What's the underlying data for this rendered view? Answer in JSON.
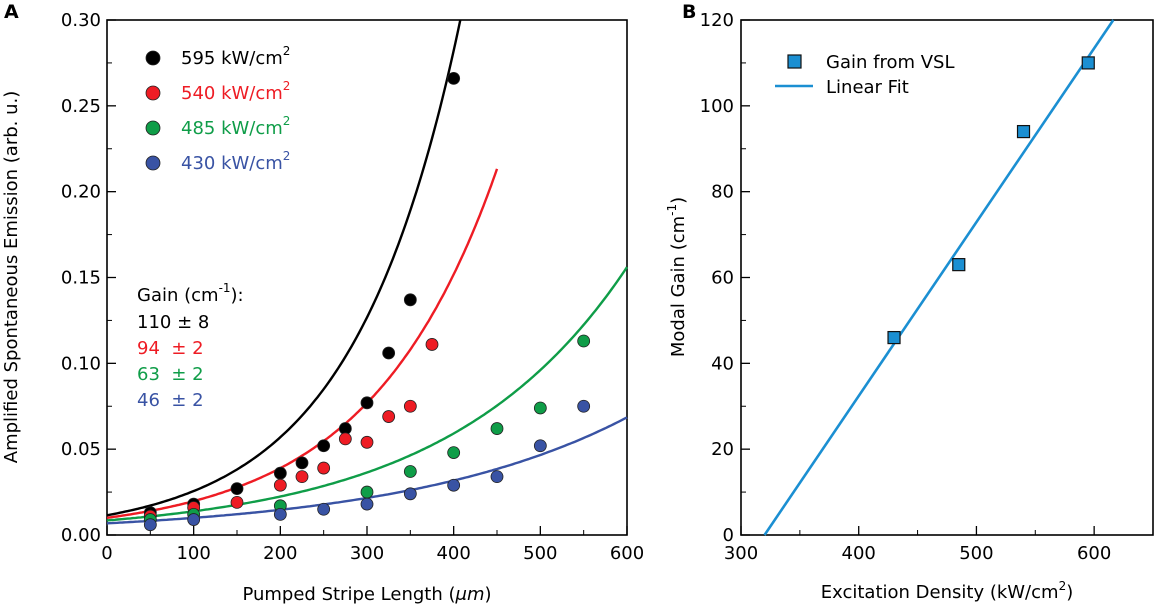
{
  "panels": {
    "a": {
      "label": "A",
      "chart_data": {
        "type": "scatter",
        "xlabel_main": "Pumped Stripe Length (",
        "xlabel_unit": "μm",
        "xlabel_end": ")",
        "ylabel": "Amplified Spontaneous Emission (arb. u.)",
        "xlim": [
          0,
          600
        ],
        "ylim": [
          0,
          0.3
        ],
        "xticks": [
          0,
          100,
          200,
          300,
          400,
          500,
          600
        ],
        "yticks": [
          0.0,
          0.05,
          0.1,
          0.15,
          0.2,
          0.25,
          0.3
        ],
        "ytick_labels": [
          "0.00",
          "0.05",
          "0.10",
          "0.15",
          "0.20",
          "0.25",
          "0.30"
        ],
        "series": [
          {
            "name": "595",
            "legend_value": "595 kW/cm",
            "legend_sup": "2",
            "color": "#000000",
            "gain": "110 ± 8",
            "gain_cm": 110,
            "fit": {
              "a": 0.0115,
              "b": 0.008,
              "xmax": 600
            },
            "points": [
              [
                50,
                0.013
              ],
              [
                100,
                0.018
              ],
              [
                150,
                0.027
              ],
              [
                200,
                0.036
              ],
              [
                225,
                0.042
              ],
              [
                250,
                0.052
              ],
              [
                275,
                0.062
              ],
              [
                300,
                0.077
              ],
              [
                325,
                0.106
              ],
              [
                350,
                0.137
              ],
              [
                400,
                0.266
              ]
            ]
          },
          {
            "name": "540",
            "legend_value": "540 kW/cm",
            "legend_sup": "2",
            "color": "#ee1c24",
            "gain": "94  ± 2",
            "gain_cm": 94,
            "fit": {
              "a": 0.01,
              "b": 0.0068,
              "xmax": 450
            },
            "points": [
              [
                50,
                0.011
              ],
              [
                100,
                0.016
              ],
              [
                150,
                0.019
              ],
              [
                200,
                0.029
              ],
              [
                225,
                0.034
              ],
              [
                250,
                0.039
              ],
              [
                275,
                0.056
              ],
              [
                300,
                0.054
              ],
              [
                325,
                0.069
              ],
              [
                350,
                0.075
              ],
              [
                375,
                0.111
              ]
            ]
          },
          {
            "name": "485",
            "legend_value": "485 kW/cm",
            "legend_sup": "2",
            "color": "#0f9d48",
            "gain": "63  ± 2",
            "gain_cm": 63,
            "fit": {
              "a": 0.0085,
              "b": 0.00485,
              "xmax": 600
            },
            "points": [
              [
                50,
                0.009
              ],
              [
                100,
                0.012
              ],
              [
                200,
                0.017
              ],
              [
                300,
                0.025
              ],
              [
                350,
                0.037
              ],
              [
                400,
                0.048
              ],
              [
                450,
                0.062
              ],
              [
                500,
                0.074
              ],
              [
                550,
                0.113
              ]
            ]
          },
          {
            "name": "430",
            "legend_value": "430 kW/cm",
            "legend_sup": "2",
            "color": "#3953a4",
            "gain": "46  ± 2",
            "gain_cm": 46,
            "fit": {
              "a": 0.0068,
              "b": 0.00385,
              "xmax": 600
            },
            "points": [
              [
                50,
                0.006
              ],
              [
                100,
                0.009
              ],
              [
                200,
                0.012
              ],
              [
                250,
                0.015
              ],
              [
                300,
                0.018
              ],
              [
                350,
                0.024
              ],
              [
                400,
                0.029
              ],
              [
                450,
                0.034
              ],
              [
                500,
                0.052
              ],
              [
                550,
                0.075
              ]
            ]
          }
        ],
        "gain_header_main": "Gain (cm",
        "gain_header_sup": "-1",
        "gain_header_end": "):"
      }
    },
    "b": {
      "label": "B",
      "chart_data": {
        "type": "scatter",
        "xlabel_main": "Excitation Density (kW/cm",
        "xlabel_sup": "2",
        "xlabel_end": ")",
        "ylabel_main": "Modal Gain (cm",
        "ylabel_sup": "-1",
        "ylabel_end": ")",
        "xlim": [
          300,
          650
        ],
        "ylim": [
          0,
          120
        ],
        "xticks": [
          300,
          400,
          500,
          600
        ],
        "yticks": [
          0,
          20,
          40,
          60,
          80,
          100,
          120
        ],
        "series": [
          {
            "name": "Gain from VSL",
            "color": "#1b8fd2",
            "marker": "square",
            "points": [
              [
                430,
                46
              ],
              [
                485,
                63
              ],
              [
                540,
                94
              ],
              [
                595,
                110
              ]
            ]
          }
        ],
        "fit": {
          "name": "Linear Fit",
          "color": "#1b8fd2",
          "slope": 0.405,
          "intercept": -129.6
        }
      }
    }
  }
}
